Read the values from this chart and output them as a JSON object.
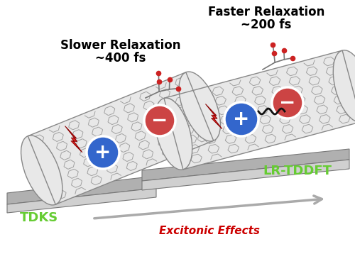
{
  "background_color": "#ffffff",
  "left_label_line1": "Slower Relaxation",
  "left_label_line2": "~400 fs",
  "right_label_line1": "Faster Relaxation",
  "right_label_line2": "~200 fs",
  "tdks_label": "TDKS",
  "lrtddft_label": "LR-TDDFT",
  "excitonic_label": "Excitonic Effects",
  "label_color": "#000000",
  "tdks_color": "#66cc33",
  "lrtddft_color": "#66cc33",
  "excitonic_color": "#cc0000",
  "plus_color": "#3366cc",
  "minus_color": "#cc4444",
  "nanotube_fill": "#e8e8e8",
  "nanotube_edge": "#888888",
  "nanotube_mesh": "#999999",
  "platform_top": "#b0b0b0",
  "platform_front": "#d0d0d0",
  "platform_side": "#c0c0c0",
  "arrow_color": "#aaaaaa",
  "figsize": [
    5.0,
    3.58
  ],
  "dpi": 100
}
